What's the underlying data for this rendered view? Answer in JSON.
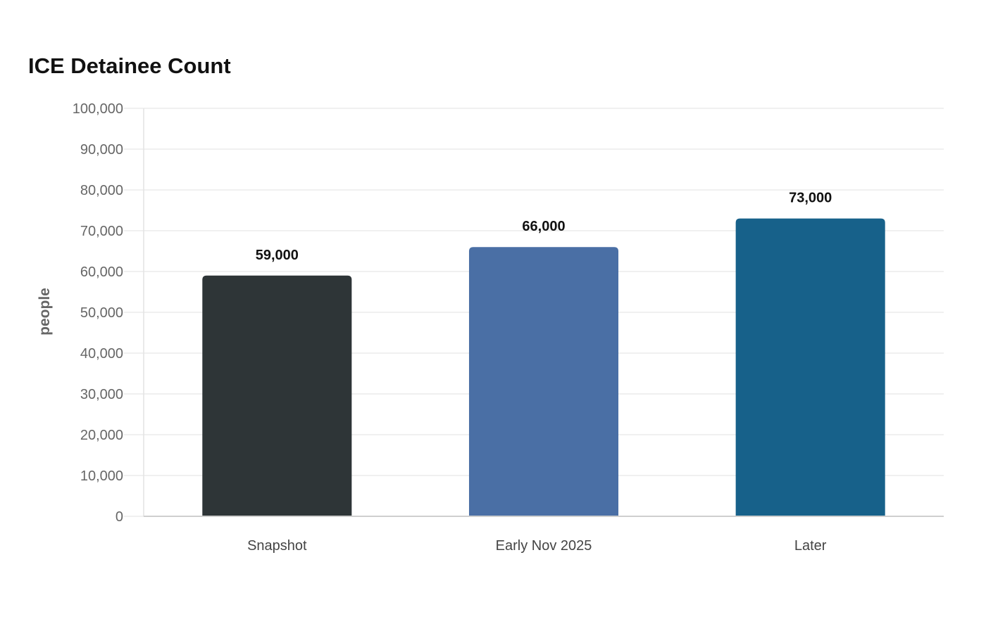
{
  "chart_data": {
    "type": "bar",
    "title": "ICE Detainee Count",
    "xlabel": "",
    "ylabel": "people",
    "categories": [
      "Snapshot",
      "Early Nov 2025",
      "Later"
    ],
    "values": [
      59000,
      66000,
      73000
    ],
    "value_labels": [
      "59,000",
      "66,000",
      "73,000"
    ],
    "colors": [
      "#2e3537",
      "#4a6fa5",
      "#17618a"
    ],
    "ylim": [
      0,
      100000
    ],
    "yticks": [
      0,
      10000,
      20000,
      30000,
      40000,
      50000,
      60000,
      70000,
      80000,
      90000,
      100000
    ],
    "ytick_labels": [
      "0",
      "10,000",
      "20,000",
      "30,000",
      "40,000",
      "50,000",
      "60,000",
      "70,000",
      "80,000",
      "90,000",
      "100,000"
    ],
    "grid": true,
    "legend": "none"
  }
}
